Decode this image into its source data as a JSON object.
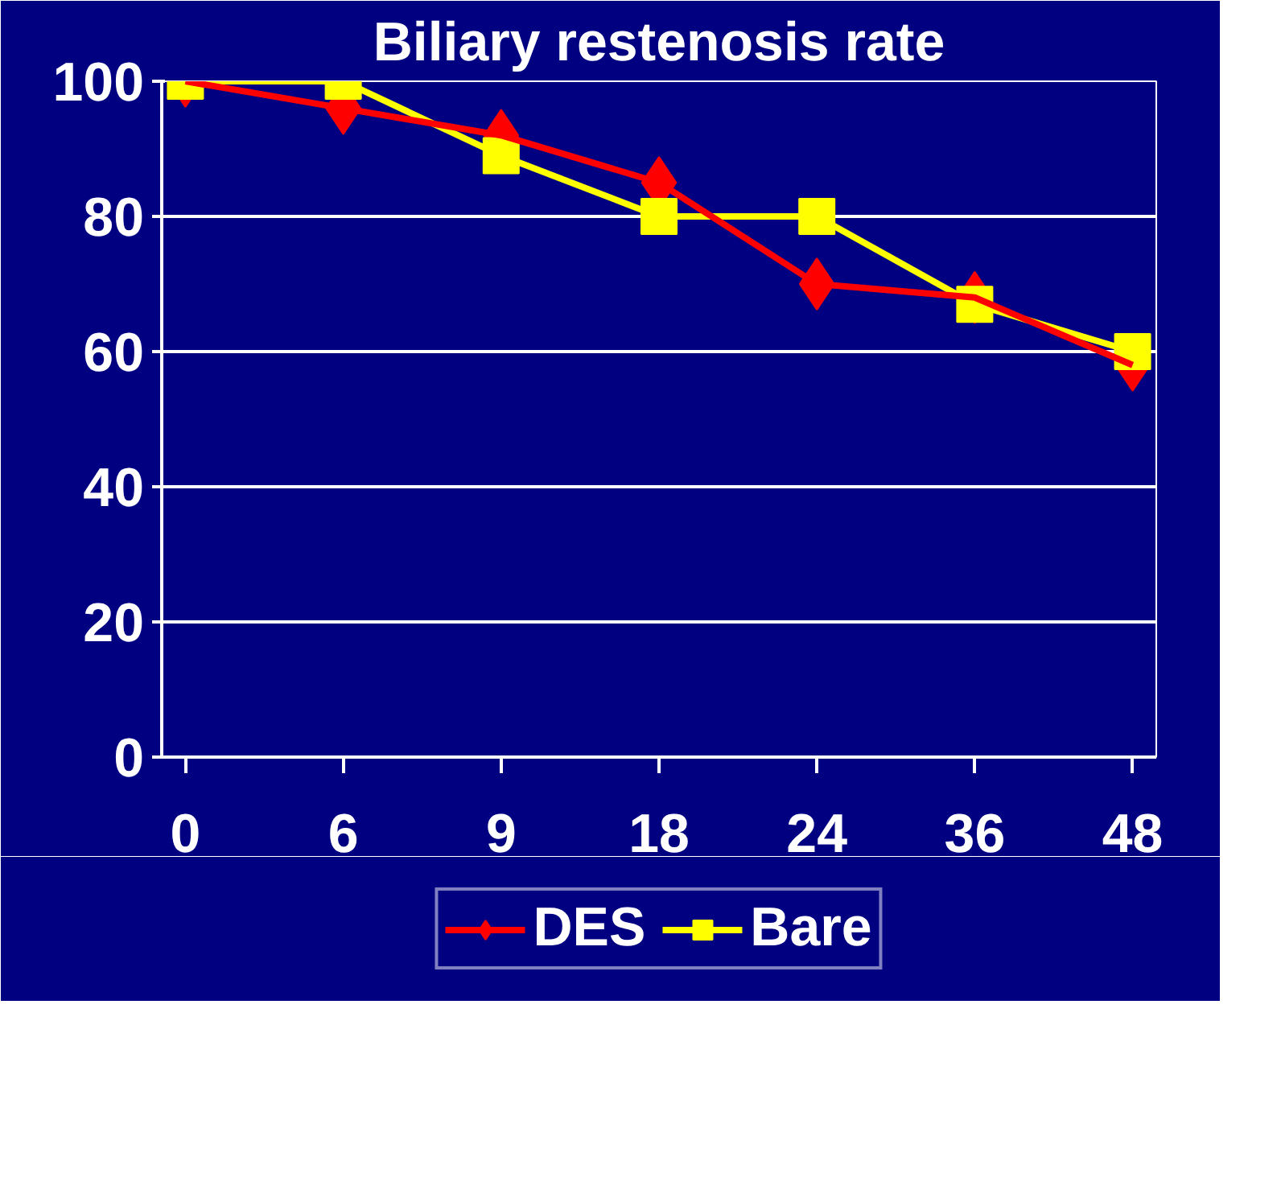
{
  "chart_data": {
    "type": "line",
    "title": "Biliary restenosis rate",
    "categories": [
      "0",
      "6",
      "9",
      "18",
      "24",
      "36",
      "48"
    ],
    "series": [
      {
        "name": "DES",
        "color": "#ff0000",
        "marker": "diamond",
        "values": [
          100,
          96,
          92,
          85,
          70,
          68,
          58
        ]
      },
      {
        "name": "Bare",
        "color": "#ffff00",
        "marker": "square",
        "values": [
          100,
          100,
          89,
          80,
          80,
          67,
          60
        ]
      }
    ],
    "ylim": [
      0,
      100
    ],
    "yticks": [
      0,
      20,
      40,
      60,
      80,
      100
    ],
    "grid": "y",
    "legend": "bottom",
    "line_style": "solid"
  }
}
